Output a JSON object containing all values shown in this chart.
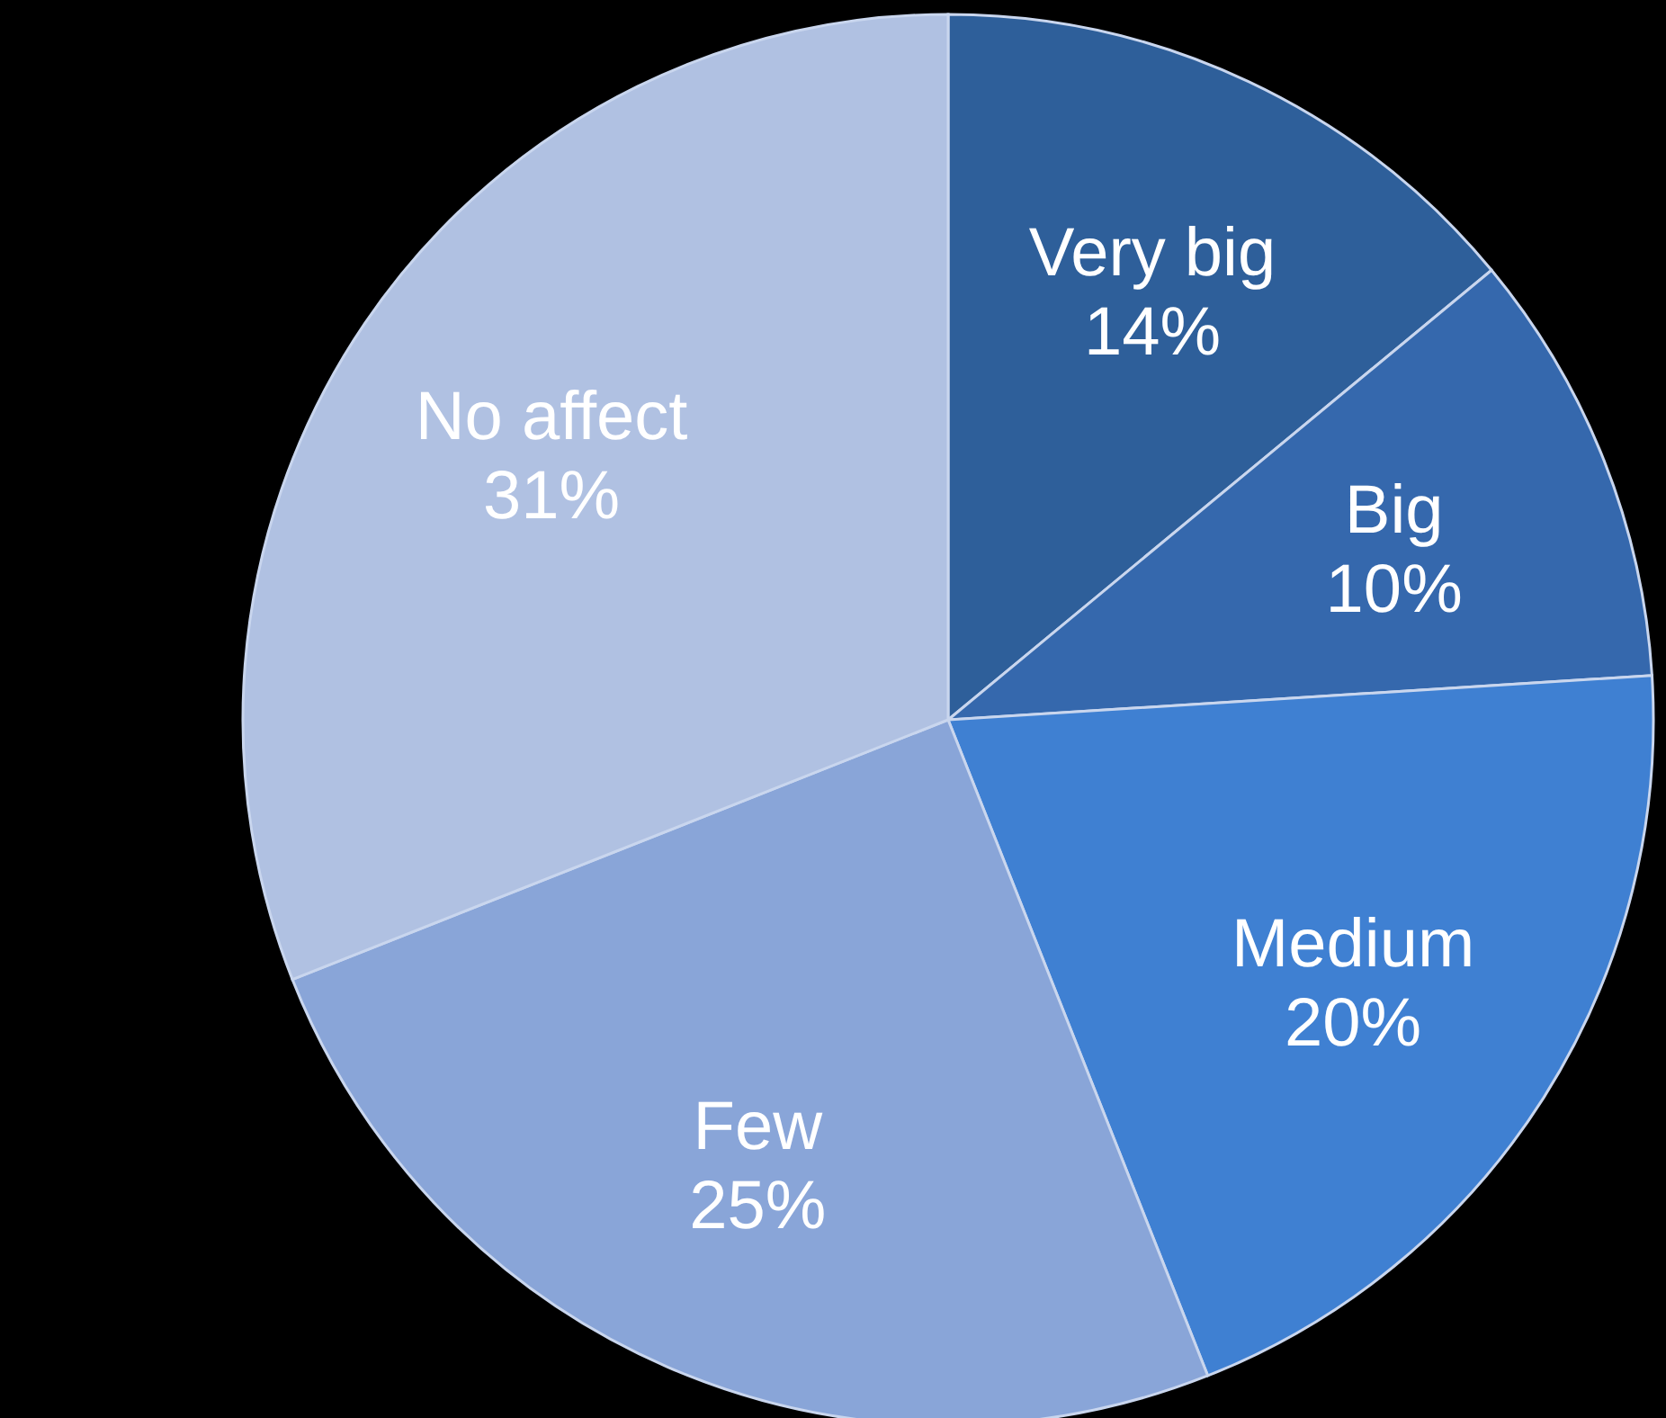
{
  "chart_data": {
    "type": "pie",
    "categories": [
      "Very big",
      "Big",
      "Medium",
      "Few",
      "No affect"
    ],
    "values": [
      14,
      10,
      20,
      25,
      31
    ],
    "colors": [
      "#2e5f9a",
      "#3568ad",
      "#3f80d2",
      "#89a5d8",
      "#b0c1e2"
    ],
    "value_labels": [
      "14%",
      "10%",
      "20%",
      "25%",
      "31%"
    ]
  }
}
